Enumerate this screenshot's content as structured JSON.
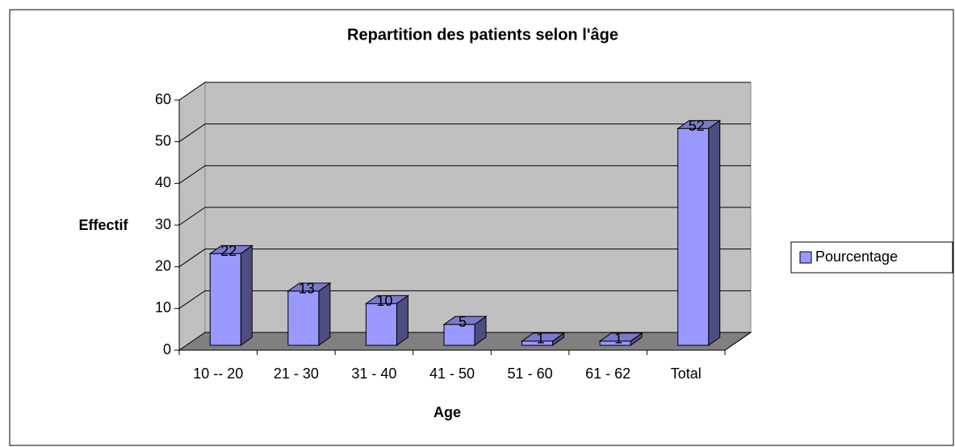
{
  "chart_data": {
    "type": "bar",
    "title": "Repartition des patients selon l'âge",
    "x_label": "Age",
    "y_label": "Effectif",
    "categories": [
      "10 -- 20",
      "21 - 30",
      "31 - 40",
      "41 - 50",
      "51 - 60",
      "61 - 62",
      "Total"
    ],
    "series": [
      {
        "name": "Pourcentage",
        "color": "#9999ff",
        "values": [
          22,
          13,
          10,
          5,
          1,
          1,
          52
        ]
      }
    ],
    "ylim": [
      0,
      60
    ],
    "yticks": [
      0,
      10,
      20,
      30,
      40,
      50,
      60
    ],
    "grid": true,
    "legend": "right"
  }
}
